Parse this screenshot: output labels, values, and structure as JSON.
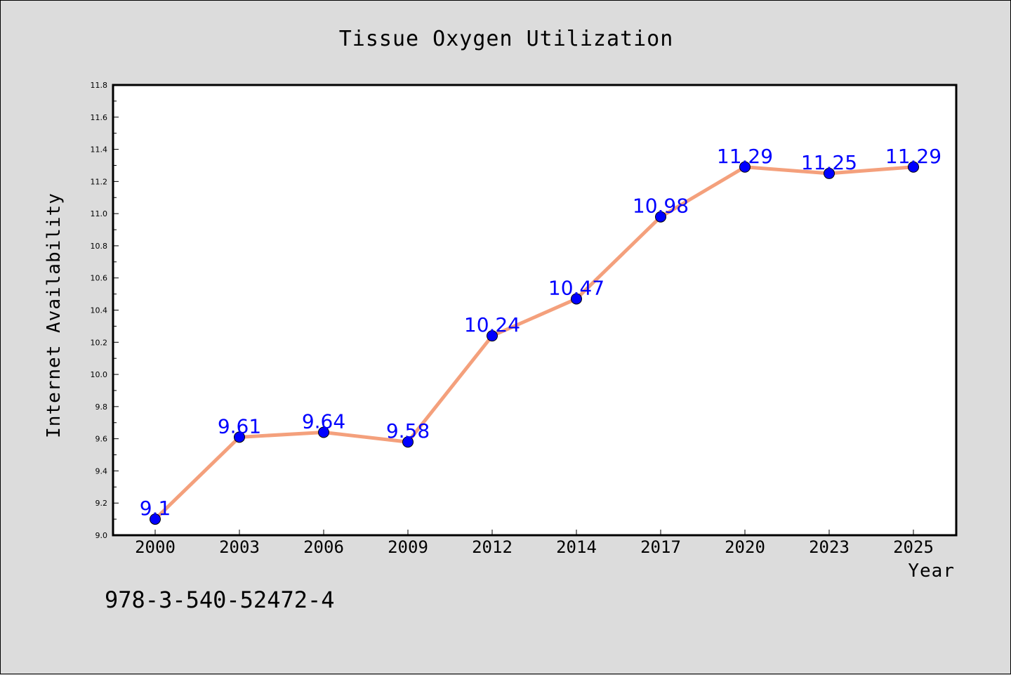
{
  "chart_data": {
    "type": "line",
    "title": "Tissue Oxygen Utilization",
    "xlabel": "Year",
    "ylabel": "Internet Availability",
    "categories": [
      "2000",
      "2003",
      "2006",
      "2009",
      "2012",
      "2014",
      "2017",
      "2020",
      "2023",
      "2025"
    ],
    "series": [
      {
        "values": [
          9.1,
          9.61,
          9.64,
          9.58,
          10.24,
          10.47,
          10.98,
          11.29,
          11.25,
          11.29
        ],
        "labels": [
          "9.1",
          "9.61",
          "9.64",
          "9.58",
          "10.24",
          "10.47",
          "10.98",
          "11.29",
          "11.25",
          "11.29"
        ],
        "line_color": "#f4a07c",
        "marker_color": "#0000ff"
      }
    ],
    "ylim": [
      9.0,
      11.8
    ],
    "yticks": [
      "9.0",
      "9.2",
      "9.4",
      "9.6",
      "9.8",
      "10.0",
      "10.2",
      "10.4",
      "10.6",
      "10.8",
      "11.0",
      "11.2",
      "11.4",
      "11.6",
      "11.8"
    ],
    "grid": false,
    "legend": "none"
  },
  "annotation": "978-3-540-52472-4",
  "colors": {
    "background": "#dcdcdc",
    "plot_background": "#ffffff",
    "line": "#f4a07c",
    "marker": "#0000ff",
    "data_label": "#0000ff"
  }
}
